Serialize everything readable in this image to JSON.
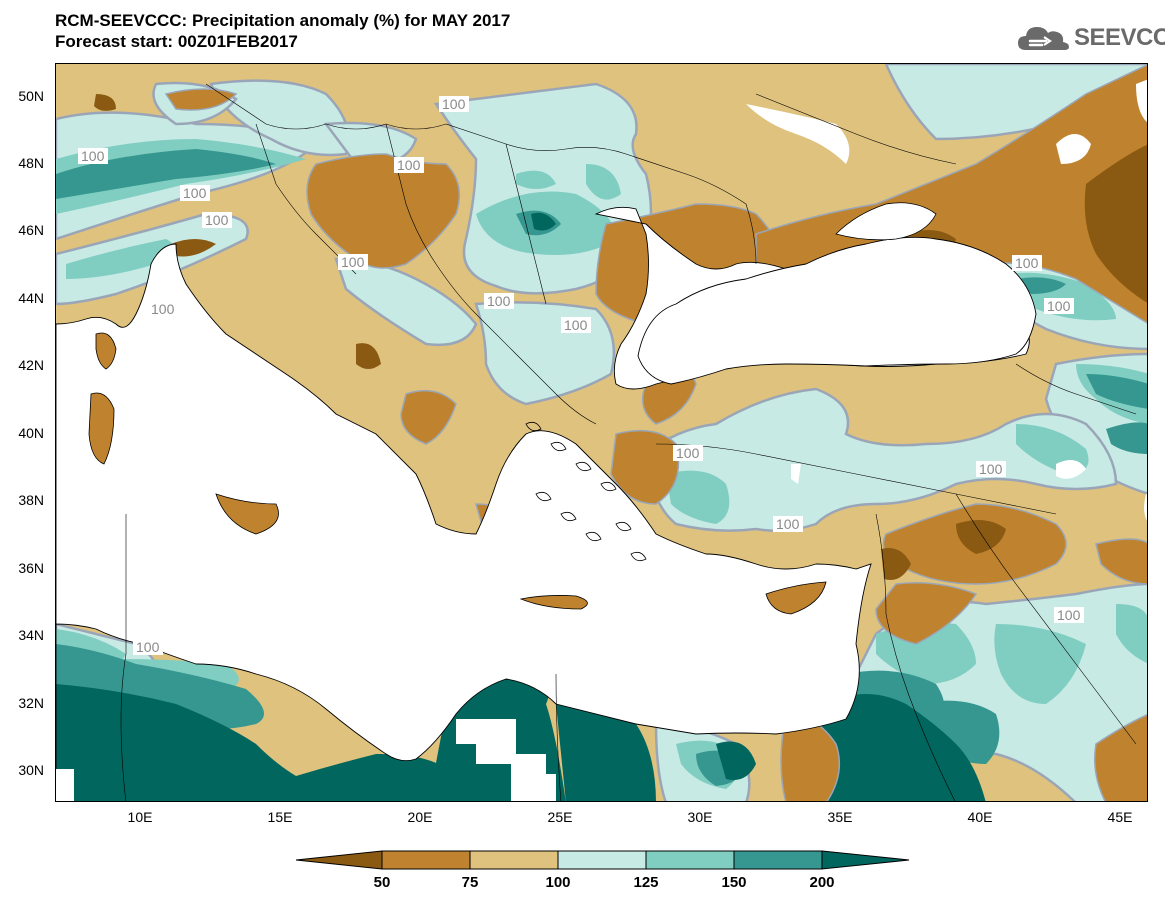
{
  "header": {
    "title": "RCM-SEEVCCC: Precipitation anomaly (%) for MAY 2017",
    "subtitle": "Forecast start: 00Z01FEB2017"
  },
  "logo": {
    "text": "SEEVCCC",
    "icon": "cloud-logo-icon"
  },
  "map": {
    "region": "Mediterranean and Black Sea",
    "lat_labels": [
      "50N",
      "48N",
      "46N",
      "44N",
      "42N",
      "40N",
      "38N",
      "36N",
      "34N",
      "32N",
      "30N"
    ],
    "lon_labels": [
      "10E",
      "15E",
      "20E",
      "25E",
      "30E",
      "35E",
      "40E",
      "45E"
    ],
    "contour_label": "100",
    "lat_range": [
      29,
      51
    ],
    "lon_range": [
      7,
      46
    ]
  },
  "legend": {
    "ticks": [
      "50",
      "75",
      "100",
      "125",
      "150",
      "200"
    ],
    "colors": [
      "#8b5a12",
      "#bf832f",
      "#dfc27d",
      "#c7eae5",
      "#80cdc1",
      "#35978f",
      "#01665e"
    ]
  },
  "colors": {
    "land_base": "#dfc27d",
    "sea": "#ffffff"
  }
}
